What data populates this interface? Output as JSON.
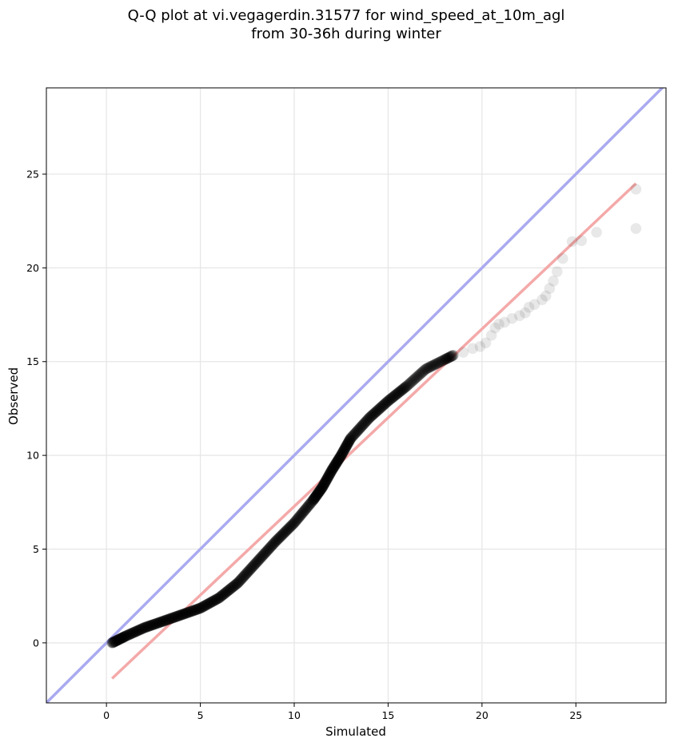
{
  "chart_data": {
    "type": "scatter",
    "title": "Q-Q plot at vi.vegagerdin.31577 for wind_speed_at_10m_agl",
    "subtitle": "from 30-36h during winter",
    "xlabel": "Simulated",
    "ylabel": "Observed",
    "xlim": [
      -3.2,
      29.8
    ],
    "ylim": [
      -3.2,
      29.6
    ],
    "xticks": [
      0,
      5,
      10,
      15,
      20,
      25
    ],
    "yticks": [
      0,
      5,
      10,
      15,
      20,
      25
    ],
    "grid": true,
    "colors": {
      "points": "#000000",
      "identity_line": "#aaaaf0",
      "fit_line": "#f4a9a9",
      "grid": "#e6e6e6"
    },
    "identity_line": {
      "from": [
        -3.2,
        -3.2
      ],
      "to": [
        29.8,
        29.8
      ]
    },
    "fit_line": {
      "from": [
        0.3,
        -1.9
      ],
      "to": [
        28.2,
        24.5
      ]
    },
    "series": [
      {
        "type": "scatter",
        "dense_knots": [
          [
            0.3,
            0.0
          ],
          [
            1.0,
            0.35
          ],
          [
            2.0,
            0.8
          ],
          [
            3.0,
            1.15
          ],
          [
            4.0,
            1.5
          ],
          [
            5.0,
            1.85
          ],
          [
            6.0,
            2.4
          ],
          [
            7.0,
            3.2
          ],
          [
            8.0,
            4.3
          ],
          [
            9.0,
            5.4
          ],
          [
            10.0,
            6.4
          ],
          [
            11.0,
            7.6
          ],
          [
            11.5,
            8.3
          ],
          [
            12.0,
            9.2
          ],
          [
            12.5,
            10.0
          ],
          [
            13.0,
            10.9
          ],
          [
            14.0,
            12.0
          ],
          [
            15.0,
            12.9
          ],
          [
            16.0,
            13.7
          ],
          [
            17.0,
            14.6
          ],
          [
            18.0,
            15.1
          ],
          [
            18.5,
            15.35
          ]
        ],
        "sparse_points": [
          [
            19.0,
            15.5
          ],
          [
            19.5,
            15.7
          ],
          [
            19.9,
            15.8
          ],
          [
            20.2,
            16.0
          ],
          [
            20.5,
            16.4
          ],
          [
            20.7,
            16.8
          ],
          [
            20.9,
            17.0
          ],
          [
            21.2,
            17.1
          ],
          [
            21.6,
            17.3
          ],
          [
            22.0,
            17.45
          ],
          [
            22.3,
            17.6
          ],
          [
            22.5,
            17.9
          ],
          [
            22.8,
            18.05
          ],
          [
            23.2,
            18.3
          ],
          [
            23.4,
            18.5
          ],
          [
            23.6,
            18.9
          ],
          [
            23.8,
            19.3
          ],
          [
            24.0,
            19.8
          ],
          [
            24.3,
            20.5
          ],
          [
            24.8,
            21.4
          ],
          [
            25.3,
            21.45
          ],
          [
            26.1,
            21.9
          ],
          [
            28.2,
            22.1
          ],
          [
            28.2,
            24.2
          ]
        ]
      }
    ]
  }
}
